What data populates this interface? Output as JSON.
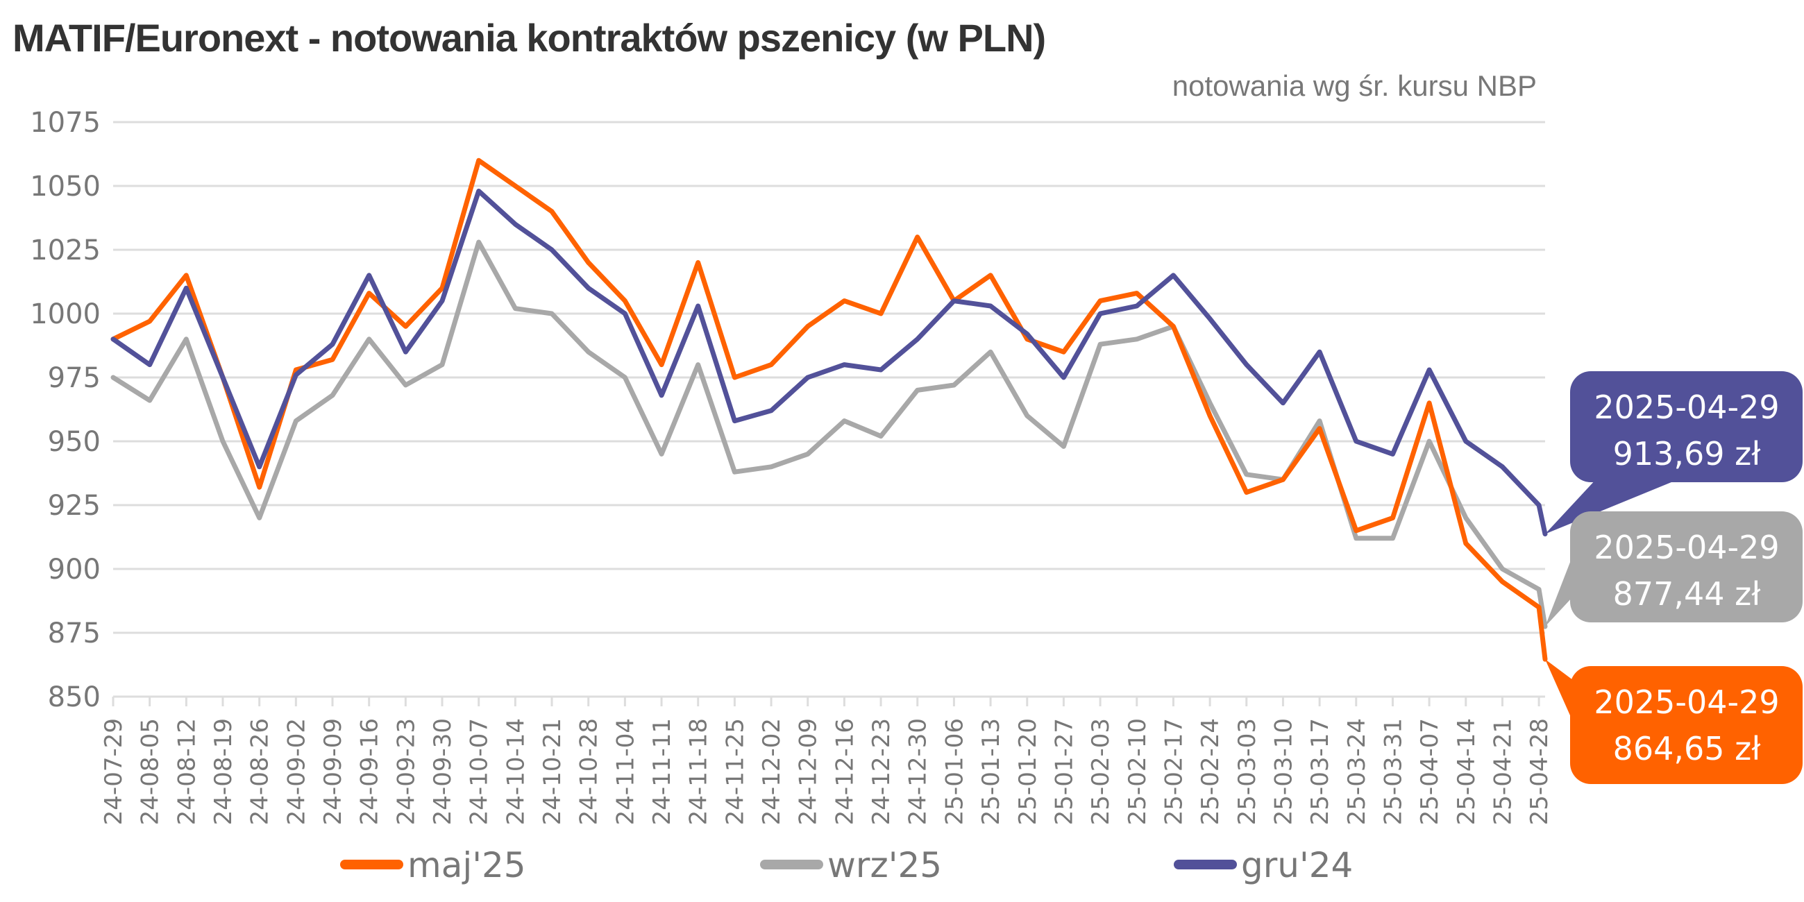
{
  "chart_data": {
    "type": "line",
    "title": "MATIF/Euronext - notowania kontraktów pszenicy (w PLN)",
    "subtitle": "notowania wg śr. kursu NBP",
    "xlabel": "",
    "ylabel": "",
    "ylim": [
      850,
      1075
    ],
    "yticks": [
      "1075",
      "1050",
      "1025",
      "1000",
      "975",
      "950",
      "925",
      "900",
      "875",
      "850"
    ],
    "grid": true,
    "legend_position": "bottom",
    "categories": [
      "24-07-29",
      "24-08-05",
      "24-08-12",
      "24-08-19",
      "24-08-26",
      "24-09-02",
      "24-09-09",
      "24-09-16",
      "24-09-23",
      "24-09-30",
      "24-10-07",
      "24-10-14",
      "24-10-21",
      "24-10-28",
      "24-11-04",
      "24-11-11",
      "24-11-18",
      "24-11-25",
      "24-12-02",
      "24-12-09",
      "24-12-16",
      "24-12-23",
      "24-12-30",
      "25-01-06",
      "25-01-13",
      "25-01-20",
      "25-01-27",
      "25-02-03",
      "25-02-10",
      "25-02-17",
      "25-02-24",
      "25-03-03",
      "25-03-10",
      "25-03-17",
      "25-03-24",
      "25-03-31",
      "25-04-07",
      "25-04-14",
      "25-04-21",
      "25-04-28"
    ],
    "series": [
      {
        "name": "maj'25",
        "color": "#FF6200",
        "values": [
          990,
          997,
          1015,
          975,
          932,
          978,
          982,
          1008,
          995,
          1010,
          1060,
          1050,
          1040,
          1020,
          1005,
          980,
          1020,
          975,
          980,
          995,
          1005,
          1000,
          1030,
          1005,
          1015,
          990,
          985,
          1005,
          1008,
          995,
          960,
          930,
          935,
          955,
          915,
          920,
          965,
          910,
          895,
          885
        ],
        "last_value": 864.65,
        "callout": {
          "date": "2025-04-29",
          "value": "864,65 zł"
        }
      },
      {
        "name": "wrz'25",
        "color": "#A8A8A8",
        "values": [
          975,
          966,
          990,
          950,
          920,
          958,
          968,
          990,
          972,
          980,
          1028,
          1002,
          1000,
          985,
          975,
          945,
          980,
          938,
          940,
          945,
          958,
          952,
          970,
          972,
          985,
          960,
          948,
          988,
          990,
          995,
          965,
          937,
          935,
          958,
          912,
          912,
          950,
          920,
          900,
          892
        ],
        "last_value": 877.44,
        "callout": {
          "date": "2025-04-29",
          "value": "877,44 zł"
        }
      },
      {
        "name": "gru'24",
        "color": "#525199",
        "values": [
          990,
          980,
          1010,
          975,
          940,
          976,
          988,
          1015,
          985,
          1005,
          1048,
          1035,
          1025,
          1010,
          1000,
          968,
          1003,
          958,
          962,
          975,
          980,
          978,
          990,
          1005,
          1003,
          992,
          975,
          1000,
          1003,
          1015,
          998,
          980,
          965,
          985,
          950,
          945,
          978,
          950,
          940,
          925
        ],
        "last_value": 913.69,
        "callout": {
          "date": "2025-04-29",
          "value": "913,69 zł"
        }
      }
    ]
  }
}
